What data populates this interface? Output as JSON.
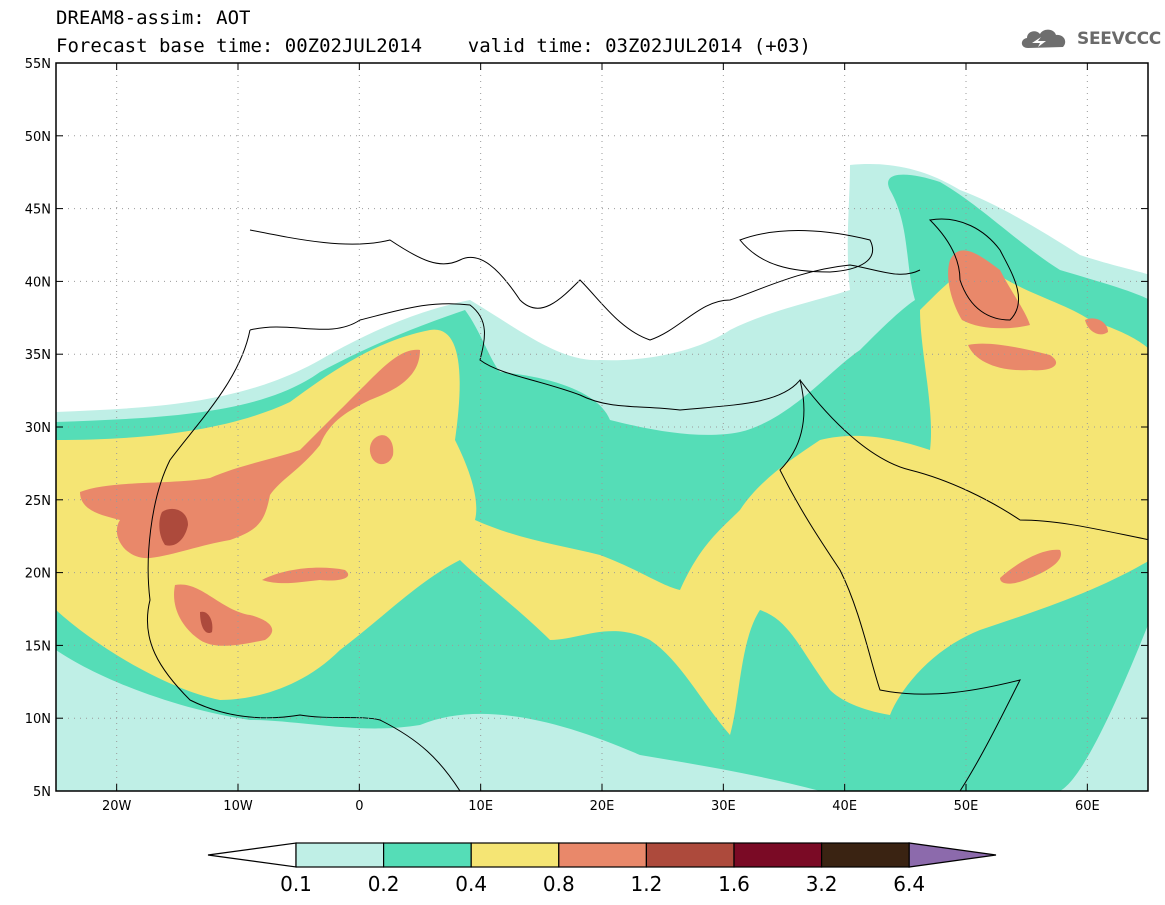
{
  "header": {
    "line1": "DREAM8-assim: AOT",
    "line2": "Forecast base time: 00Z02JUL2014    valid time: 03Z02JUL2014 (+03)"
  },
  "logo": {
    "text": "SEEVCCC",
    "icon": "cloud-icon"
  },
  "map": {
    "lon_range": [
      -25,
      65
    ],
    "lat_range": [
      5,
      55
    ],
    "lat_ticks": [
      {
        "lat": 55,
        "label": "55N"
      },
      {
        "lat": 50,
        "label": "50N"
      },
      {
        "lat": 45,
        "label": "45N"
      },
      {
        "lat": 40,
        "label": "40N"
      },
      {
        "lat": 35,
        "label": "35N"
      },
      {
        "lat": 30,
        "label": "30N"
      },
      {
        "lat": 25,
        "label": "25N"
      },
      {
        "lat": 20,
        "label": "20N"
      },
      {
        "lat": 15,
        "label": "15N"
      },
      {
        "lat": 10,
        "label": "10N"
      },
      {
        "lat": 5,
        "label": "5N"
      }
    ],
    "lon_ticks": [
      {
        "lon": -20,
        "label": "20W"
      },
      {
        "lon": -10,
        "label": "10W"
      },
      {
        "lon": 0,
        "label": "0"
      },
      {
        "lon": 10,
        "label": "10E"
      },
      {
        "lon": 20,
        "label": "20E"
      },
      {
        "lon": 30,
        "label": "30E"
      },
      {
        "lon": 40,
        "label": "40E"
      },
      {
        "lon": 50,
        "label": "50E"
      },
      {
        "lon": 60,
        "label": "60E"
      }
    ],
    "grid": "dotted"
  },
  "colorbar": {
    "levels": [
      "0.1",
      "0.2",
      "0.4",
      "0.8",
      "1.2",
      "1.6",
      "3.2",
      "6.4"
    ],
    "colors": [
      "#ffffff",
      "#bfefe6",
      "#55ddb7",
      "#f5e574",
      "#e9886a",
      "#ad4a3c",
      "#7a0a25",
      "#3a2312",
      "#8c6aac"
    ]
  }
}
